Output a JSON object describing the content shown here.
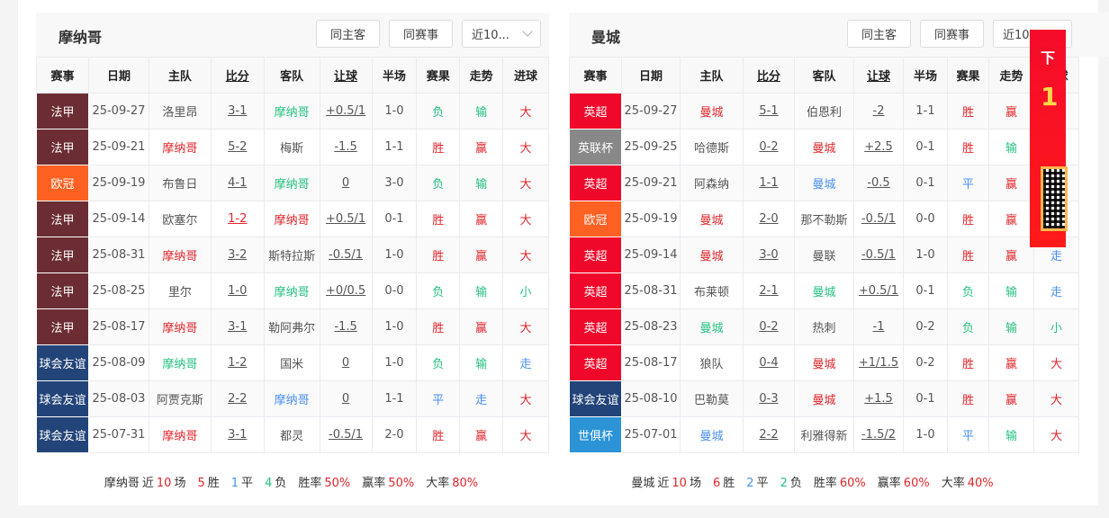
{
  "colors": {
    "win": "#e0262b",
    "loss": "#26c281",
    "draw": "#4a8ff0",
    "ligue1": "#6b2d33",
    "ucl": "#ff6122",
    "friendly": "#234479",
    "epl": "#f0082a",
    "eflcup": "#888888",
    "cwc": "#2b93d6"
  },
  "buttons": {
    "same_home_away": "同主客",
    "same_competition": "同赛事",
    "recent": "近10..."
  },
  "right_buttons": {
    "same_home_away": "同主客",
    "same_competition": "同赛事",
    "recent": "近10"
  },
  "headers": [
    "赛事",
    "日期",
    "主队",
    "比分",
    "客队",
    "让球",
    "半场",
    "赛果",
    "走势",
    "进球"
  ],
  "ad": {
    "text": "下",
    "number": "1"
  },
  "panels": [
    {
      "title": "摩纳哥",
      "rows": [
        {
          "league": "法甲",
          "lc": "ligue1",
          "date": "25-09-27",
          "home": "洛里昂",
          "hc": "n",
          "score": "3-1",
          "sc": "n",
          "away": "摩纳哥",
          "ac": "g",
          "hcp": "+0.5/1",
          "half": "1-0",
          "result": "负",
          "rc": "g",
          "trend": "输",
          "tc": "g",
          "goals": "大",
          "gc": "r"
        },
        {
          "league": "法甲",
          "lc": "ligue1",
          "date": "25-09-21",
          "home": "摩纳哥",
          "hc": "r",
          "score": "5-2",
          "sc": "n",
          "away": "梅斯",
          "ac": "n",
          "hcp": "-1.5",
          "half": "1-1",
          "result": "胜",
          "rc": "r",
          "trend": "赢",
          "tc": "r",
          "goals": "大",
          "gc": "r"
        },
        {
          "league": "欧冠",
          "lc": "ucl",
          "date": "25-09-19",
          "home": "布鲁日",
          "hc": "n",
          "score": "4-1",
          "sc": "n",
          "away": "摩纳哥",
          "ac": "g",
          "hcp": "0",
          "half": "3-0",
          "result": "负",
          "rc": "g",
          "trend": "输",
          "tc": "g",
          "goals": "大",
          "gc": "r"
        },
        {
          "league": "法甲",
          "lc": "ligue1",
          "date": "25-09-14",
          "home": "欧塞尔",
          "hc": "n",
          "score": "1-2",
          "sc": "r",
          "away": "摩纳哥",
          "ac": "r",
          "hcp": "+0.5/1",
          "half": "0-1",
          "result": "胜",
          "rc": "r",
          "trend": "赢",
          "tc": "r",
          "goals": "大",
          "gc": "r"
        },
        {
          "league": "法甲",
          "lc": "ligue1",
          "date": "25-08-31",
          "home": "摩纳哥",
          "hc": "r",
          "score": "3-2",
          "sc": "n",
          "away": "斯特拉斯",
          "ac": "n",
          "hcp": "-0.5/1",
          "half": "1-0",
          "result": "胜",
          "rc": "r",
          "trend": "赢",
          "tc": "r",
          "goals": "大",
          "gc": "r"
        },
        {
          "league": "法甲",
          "lc": "ligue1",
          "date": "25-08-25",
          "home": "里尔",
          "hc": "n",
          "score": "1-0",
          "sc": "n",
          "away": "摩纳哥",
          "ac": "g",
          "hcp": "+0/0.5",
          "half": "0-0",
          "result": "负",
          "rc": "g",
          "trend": "输",
          "tc": "g",
          "goals": "小",
          "gc": "g"
        },
        {
          "league": "法甲",
          "lc": "ligue1",
          "date": "25-08-17",
          "home": "摩纳哥",
          "hc": "r",
          "score": "3-1",
          "sc": "n",
          "away": "勒阿弗尔",
          "ac": "n",
          "hcp": "-1.5",
          "half": "1-0",
          "result": "胜",
          "rc": "r",
          "trend": "赢",
          "tc": "r",
          "goals": "大",
          "gc": "r"
        },
        {
          "league": "球会友谊",
          "lc": "friendly",
          "date": "25-08-09",
          "home": "摩纳哥",
          "hc": "g",
          "score": "1-2",
          "sc": "n",
          "away": "国米",
          "ac": "n",
          "hcp": "0",
          "half": "1-0",
          "result": "负",
          "rc": "g",
          "trend": "输",
          "tc": "g",
          "goals": "走",
          "gc": "b"
        },
        {
          "league": "球会友谊",
          "lc": "friendly",
          "date": "25-08-03",
          "home": "阿贾克斯",
          "hc": "n",
          "score": "2-2",
          "sc": "n",
          "away": "摩纳哥",
          "ac": "b",
          "hcp": "0",
          "half": "1-1",
          "result": "平",
          "rc": "b",
          "trend": "走",
          "tc": "b",
          "goals": "大",
          "gc": "r"
        },
        {
          "league": "球会友谊",
          "lc": "friendly",
          "date": "25-07-31",
          "home": "摩纳哥",
          "hc": "r",
          "score": "3-1",
          "sc": "n",
          "away": "都灵",
          "ac": "n",
          "hcp": "-0.5/1",
          "half": "2-0",
          "result": "胜",
          "rc": "r",
          "trend": "赢",
          "tc": "r",
          "goals": "大",
          "gc": "r"
        }
      ],
      "summary": {
        "team": "摩纳哥",
        "near": "近",
        "count": "10",
        "games": "场",
        "wins": "5",
        "win_label": "胜",
        "draws": "1",
        "draw_label": "平",
        "losses": "4",
        "loss_label": "负",
        "win_rate_label": "胜率",
        "win_rate": "50%",
        "cover_rate_label": "赢率",
        "cover_rate": "50%",
        "over_rate_label": "大率",
        "over_rate": "80%"
      }
    },
    {
      "title": "曼城",
      "rows": [
        {
          "league": "英超",
          "lc": "epl",
          "date": "25-09-27",
          "home": "曼城",
          "hc": "r",
          "score": "5-1",
          "sc": "n",
          "away": "伯恩利",
          "ac": "n",
          "hcp": "-2",
          "half": "1-1",
          "result": "胜",
          "rc": "r",
          "trend": "赢",
          "tc": "r",
          "goals": "",
          "gc": "n"
        },
        {
          "league": "英联杯",
          "lc": "eflcup",
          "date": "25-09-25",
          "home": "哈德斯",
          "hc": "n",
          "score": "0-2",
          "sc": "n",
          "away": "曼城",
          "ac": "r",
          "hcp": "+2.5",
          "half": "0-1",
          "result": "胜",
          "rc": "r",
          "trend": "输",
          "tc": "g",
          "goals": "",
          "gc": "n"
        },
        {
          "league": "英超",
          "lc": "epl",
          "date": "25-09-21",
          "home": "阿森纳",
          "hc": "n",
          "score": "1-1",
          "sc": "n",
          "away": "曼城",
          "ac": "b",
          "hcp": "-0.5",
          "half": "0-1",
          "result": "平",
          "rc": "b",
          "trend": "赢",
          "tc": "r",
          "goals": "",
          "gc": "n"
        },
        {
          "league": "欧冠",
          "lc": "ucl",
          "date": "25-09-19",
          "home": "曼城",
          "hc": "r",
          "score": "2-0",
          "sc": "n",
          "away": "那不勒斯",
          "ac": "n",
          "hcp": "-0.5/1",
          "half": "0-0",
          "result": "胜",
          "rc": "r",
          "trend": "赢",
          "tc": "r",
          "goals": "",
          "gc": "n"
        },
        {
          "league": "英超",
          "lc": "epl",
          "date": "25-09-14",
          "home": "曼城",
          "hc": "r",
          "score": "3-0",
          "sc": "n",
          "away": "曼联",
          "ac": "n",
          "hcp": "-0.5/1",
          "half": "1-0",
          "result": "胜",
          "rc": "r",
          "trend": "赢",
          "tc": "r",
          "goals": "走",
          "gc": "b"
        },
        {
          "league": "英超",
          "lc": "epl",
          "date": "25-08-31",
          "home": "布莱顿",
          "hc": "n",
          "score": "2-1",
          "sc": "n",
          "away": "曼城",
          "ac": "g",
          "hcp": "+0.5/1",
          "half": "0-1",
          "result": "负",
          "rc": "g",
          "trend": "输",
          "tc": "g",
          "goals": "走",
          "gc": "b"
        },
        {
          "league": "英超",
          "lc": "epl",
          "date": "25-08-23",
          "home": "曼城",
          "hc": "g",
          "score": "0-2",
          "sc": "n",
          "away": "热刺",
          "ac": "n",
          "hcp": "-1",
          "half": "0-2",
          "result": "负",
          "rc": "g",
          "trend": "输",
          "tc": "g",
          "goals": "小",
          "gc": "g"
        },
        {
          "league": "英超",
          "lc": "epl",
          "date": "25-08-17",
          "home": "狼队",
          "hc": "n",
          "score": "0-4",
          "sc": "n",
          "away": "曼城",
          "ac": "r",
          "hcp": "+1/1.5",
          "half": "0-2",
          "result": "胜",
          "rc": "r",
          "trend": "赢",
          "tc": "r",
          "goals": "大",
          "gc": "r"
        },
        {
          "league": "球会友谊",
          "lc": "friendly",
          "date": "25-08-10",
          "home": "巴勒莫",
          "hc": "n",
          "score": "0-3",
          "sc": "n",
          "away": "曼城",
          "ac": "r",
          "hcp": "+1.5",
          "half": "0-1",
          "result": "胜",
          "rc": "r",
          "trend": "赢",
          "tc": "r",
          "goals": "大",
          "gc": "r"
        },
        {
          "league": "世俱杯",
          "lc": "cwc",
          "date": "25-07-01",
          "home": "曼城",
          "hc": "b",
          "score": "2-2",
          "sc": "n",
          "away": "利雅得新",
          "ac": "n",
          "hcp": "-1.5/2",
          "half": "1-0",
          "result": "平",
          "rc": "b",
          "trend": "输",
          "tc": "g",
          "goals": "大",
          "gc": "r"
        }
      ],
      "summary": {
        "team": "曼城",
        "near": "近",
        "count": "10",
        "games": "场",
        "wins": "6",
        "win_label": "胜",
        "draws": "2",
        "draw_label": "平",
        "losses": "2",
        "loss_label": "负",
        "win_rate_label": "胜率",
        "win_rate": "60%",
        "cover_rate_label": "赢率",
        "cover_rate": "60%",
        "over_rate_label": "大率",
        "over_rate": "40%"
      }
    }
  ]
}
